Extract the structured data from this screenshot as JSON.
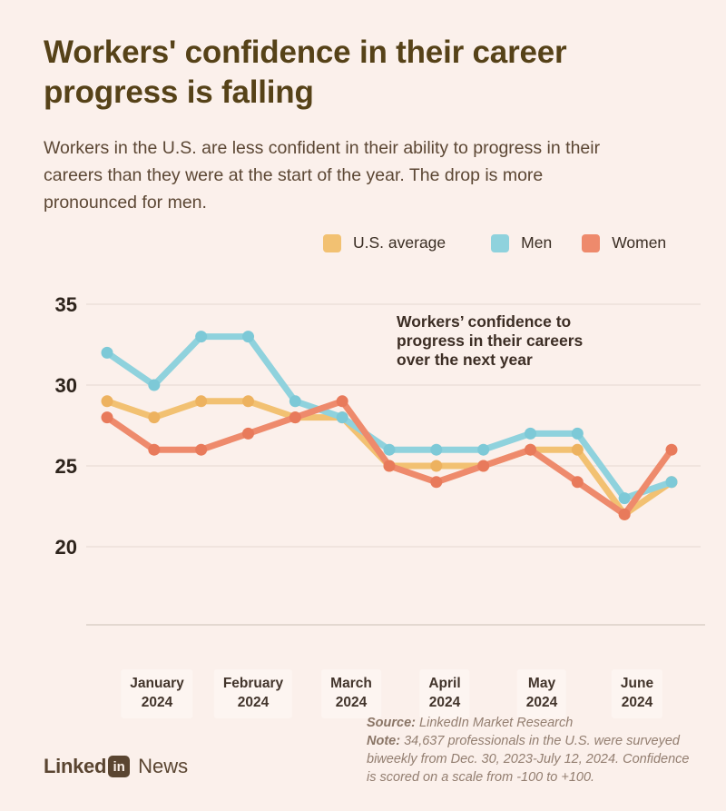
{
  "header": {
    "title_lines": [
      "Workers' confidence in their career",
      "progress is falling"
    ],
    "subtitle_lines": [
      "Workers in the U.S. are less confident in their ability to progress in their",
      "careers than they were at the start of the year. The drop is more",
      "pronounced for men."
    ]
  },
  "chart_data": {
    "type": "line",
    "annotation_lines": [
      "Workers’ confidence to",
      "progress in their careers",
      "over the next year"
    ],
    "categories": [
      "January 2024",
      "February 2024",
      "March 2024",
      "April 2024",
      "May 2024",
      "June 2024"
    ],
    "series": [
      {
        "name": "U.S. average",
        "color": "#f2c172",
        "marker_color": "#edb25f",
        "values": [
          29,
          28,
          29,
          29,
          28,
          28,
          25,
          25,
          25,
          26,
          26,
          22,
          24
        ]
      },
      {
        "name": "Men",
        "color": "#8fd2dd",
        "marker_color": "#7dc9d7",
        "values": [
          32,
          30,
          33,
          33,
          29,
          28,
          26,
          26,
          26,
          27,
          27,
          23,
          24
        ]
      },
      {
        "name": "Women",
        "color": "#ee8a6c",
        "marker_color": "#e87a5b",
        "values": [
          28,
          26,
          26,
          27,
          28,
          29,
          25,
          24,
          25,
          26,
          24,
          22,
          26
        ]
      }
    ],
    "yticks": [
      35,
      30,
      25,
      20
    ],
    "ylim": [
      15,
      36
    ],
    "grid": true,
    "legend_position": "top"
  },
  "footer": {
    "logo": {
      "linked": "Linked",
      "in": "in",
      "news": "News"
    },
    "source_label": "Source:",
    "source_text": " LinkedIn Market Research",
    "note_label": "Note:",
    "note_text": " 34,637 professionals in the U.S. were surveyed biweekly from Dec. 30, 2023-July 12, 2024. Confidence is scored on a scale from -100 to +100."
  }
}
